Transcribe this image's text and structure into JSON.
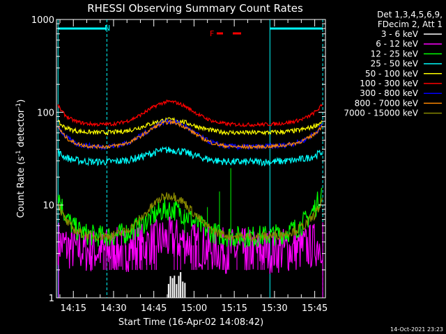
{
  "chart_data": {
    "type": "line",
    "title": "RHESSI Observing Summary Count Rates",
    "xlabel": "Start Time (16-Apr-02 14:08:42)",
    "ylabel_main": "Count Rate (s",
    "ylabel_sup1": "-1",
    "ylabel_mid": " detector",
    "ylabel_sup2": "-1",
    "ylabel_end": ")",
    "yscale": "log",
    "ylim": [
      1,
      1000
    ],
    "y_ticks": [
      {
        "value": 1,
        "label": "1"
      },
      {
        "value": 10,
        "label": "10"
      },
      {
        "value": 100,
        "label": "100"
      },
      {
        "value": 1000,
        "label": "1000"
      }
    ],
    "x_start_min": 848.7,
    "x_end_min": 949.0,
    "x_ticks": [
      {
        "minute": 855,
        "label": "14:15"
      },
      {
        "minute": 870,
        "label": "14:30"
      },
      {
        "minute": 885,
        "label": "14:45"
      },
      {
        "minute": 900,
        "label": "15:00"
      },
      {
        "minute": 915,
        "label": "15:15"
      },
      {
        "minute": 930,
        "label": "15:30"
      },
      {
        "minute": 945,
        "label": "15:45"
      }
    ],
    "legend_header": [
      "Det 1,3,4,5,6,9,",
      "FDecim 2, Att 1"
    ],
    "legend_placement": "right",
    "series": [
      {
        "name": "3 - 6 keV",
        "color": "#ffffff"
      },
      {
        "name": "6 - 12 keV",
        "color": "#ff00ff",
        "base": 3.2,
        "amp": 0.12,
        "noise": 0.25
      },
      {
        "name": "12 - 25 keV",
        "color": "#00ff00",
        "base": 4.5,
        "amp": 0.3,
        "noise": 0.12
      },
      {
        "name": "25 - 50 keV",
        "color": "#00ffff",
        "base": 29,
        "amp": 0.13,
        "noise": 0.04
      },
      {
        "name": "50 - 100 keV",
        "color": "#ffff00",
        "base": 60,
        "amp": 0.14,
        "noise": 0.025
      },
      {
        "name": "100 - 300 keV",
        "color": "#ff0000",
        "base": 73,
        "amp": 0.25,
        "noise": 0.02
      },
      {
        "name": "300 - 800 keV",
        "color": "#0000ff",
        "base": 42,
        "amp": 0.28,
        "noise": 0.03
      },
      {
        "name": "800 - 7000 keV",
        "color": "#ff8800",
        "base": 42,
        "amp": 0.27,
        "noise": 0.02
      },
      {
        "name": "7000 - 15000 keV",
        "color": "#888800",
        "base": 4.5,
        "amp": 0.45,
        "noise": 0.05
      }
    ],
    "annotations": {
      "saa_label": "N",
      "flare_label": "F",
      "saa_bar_color": "#00ffff",
      "flare_color": "#ff0000"
    },
    "timestamp": "14-Oct-2021 23:23"
  }
}
